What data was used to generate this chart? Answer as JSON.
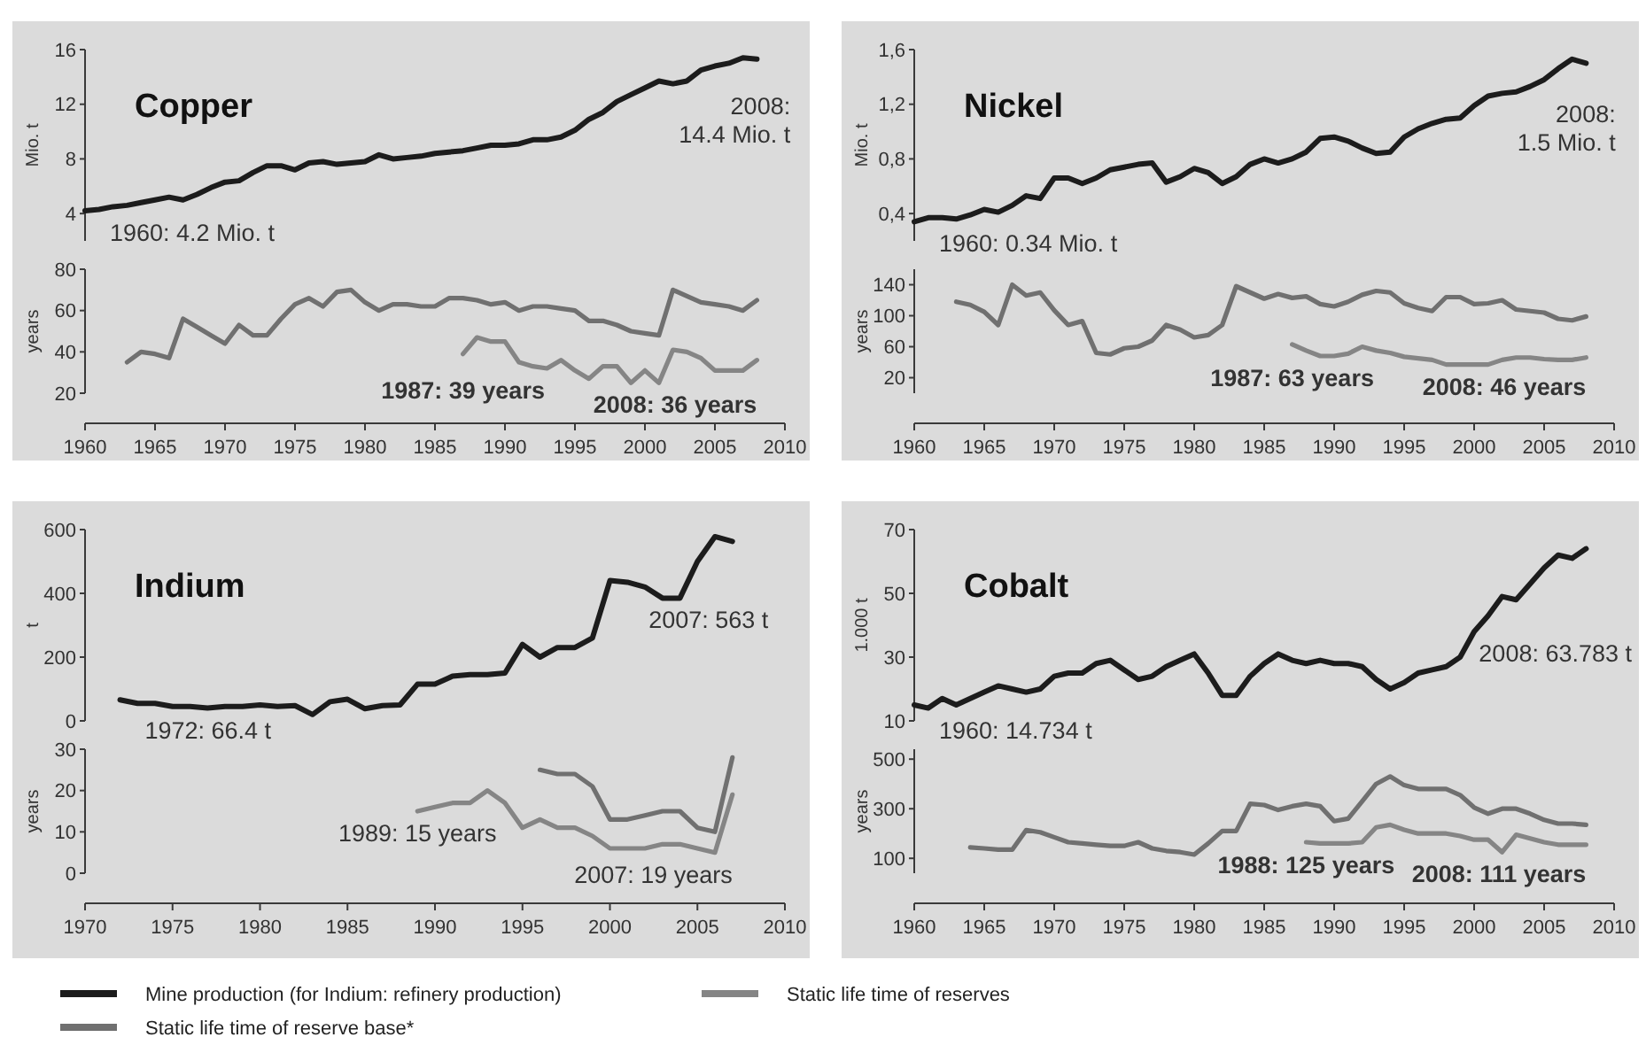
{
  "chart_data": [
    {
      "type": "line",
      "title": "Copper",
      "ylabel": "Mio. t",
      "xlim": [
        1960,
        2010
      ],
      "ylim": [
        2,
        16
      ],
      "yticks": [
        4,
        8,
        12,
        16
      ],
      "tick_labels": "y",
      "legend": "bottom",
      "annotations": [
        {
          "text": "1960: 4.2 Mio. t",
          "x": 1960,
          "y": 4.2
        },
        "2008:\n14.4 Mio. t"
      ],
      "series": [
        {
          "name": "Mine production (for Indium: refinery production)",
          "color": "#1c1c1c",
          "x": [
            1960,
            1961,
            1962,
            1963,
            1964,
            1965,
            1966,
            1967,
            1968,
            1969,
            1970,
            1971,
            1972,
            1973,
            1974,
            1975,
            1976,
            1977,
            1978,
            1979,
            1980,
            1981,
            1982,
            1983,
            1984,
            1985,
            1986,
            1987,
            1988,
            1989,
            1990,
            1991,
            1992,
            1993,
            1994,
            1995,
            1996,
            1997,
            1998,
            1999,
            2000,
            2001,
            2002,
            2003,
            2004,
            2005,
            2006,
            2007,
            2008
          ],
          "values": [
            4.2,
            4.3,
            4.5,
            4.6,
            4.8,
            5.0,
            5.2,
            5.0,
            5.4,
            5.9,
            6.3,
            6.4,
            7.0,
            7.5,
            7.5,
            7.2,
            7.7,
            7.8,
            7.6,
            7.7,
            7.8,
            8.3,
            8.0,
            8.1,
            8.2,
            8.4,
            8.5,
            8.6,
            8.8,
            9.0,
            9.0,
            9.1,
            9.4,
            9.4,
            9.6,
            10.1,
            10.9,
            11.4,
            12.2,
            12.7,
            13.2,
            13.7,
            13.5,
            13.7,
            14.5,
            14.8,
            15.0,
            15.4,
            15.3
          ]
        }
      ]
    },
    {
      "type": "line",
      "ylabel": "years",
      "xlim": [
        1960,
        2010
      ],
      "xticks": [
        1960,
        1965,
        1970,
        1975,
        1980,
        1985,
        1990,
        1995,
        2000,
        2005,
        2010
      ],
      "ylim": [
        20,
        80
      ],
      "yticks": [
        20,
        40,
        60,
        80
      ],
      "legend": "bottom",
      "annotations": [
        {
          "text": "1987: 39 years",
          "x": 1987,
          "y": 39
        },
        {
          "text": "2008: 36 years",
          "x": 2008,
          "y": 36
        }
      ],
      "series": [
        {
          "name": "Static life time of reserve base*",
          "color": "#707070",
          "x": [
            1963,
            1964,
            1965,
            1966,
            1967,
            1968,
            1969,
            1970,
            1971,
            1972,
            1973,
            1974,
            1975,
            1976,
            1977,
            1978,
            1979,
            1980,
            1981,
            1982,
            1983,
            1984,
            1985,
            1986,
            1987,
            1988,
            1989,
            1990,
            1991,
            1992,
            1993,
            1994,
            1995,
            1996,
            1997,
            1998,
            1999,
            2000,
            2001,
            2002,
            2003,
            2004,
            2005,
            2006,
            2007,
            2008
          ],
          "values": [
            35,
            40,
            39,
            37,
            56,
            52,
            48,
            44,
            53,
            48,
            48,
            56,
            63,
            66,
            62,
            69,
            70,
            64,
            60,
            63,
            63,
            62,
            62,
            66,
            66,
            65,
            63,
            64,
            60,
            62,
            62,
            61,
            60,
            55,
            55,
            53,
            50,
            49,
            48,
            70,
            67,
            64,
            63,
            62,
            60,
            65
          ]
        },
        {
          "name": "Static life time of reserves",
          "color": "#858585",
          "x": [
            1987,
            1988,
            1989,
            1990,
            1991,
            1992,
            1993,
            1994,
            1995,
            1996,
            1997,
            1998,
            1999,
            2000,
            2001,
            2002,
            2003,
            2004,
            2005,
            2006,
            2007,
            2008
          ],
          "values": [
            39,
            47,
            45,
            45,
            35,
            33,
            32,
            36,
            31,
            27,
            33,
            33,
            25,
            31,
            25,
            41,
            40,
            37,
            31,
            31,
            31,
            36
          ]
        }
      ]
    },
    {
      "type": "line",
      "title": "Nickel",
      "ylabel": "Mio. t",
      "xlim": [
        1960,
        2010
      ],
      "ylim": [
        0.2,
        1.6
      ],
      "yticks": [
        {
          "value": 0.4,
          "label": "0,4"
        },
        {
          "value": 0.8,
          "label": "0,8"
        },
        {
          "value": 1.2,
          "label": "1,2"
        },
        {
          "value": 1.6,
          "label": "1,6"
        }
      ],
      "tick_labels": "y",
      "legend": "bottom",
      "annotations": [
        {
          "text": "1960: 0.34 Mio. t",
          "x": 1960,
          "y": 0.34
        },
        {
          "text": "2008:\n1.5 Mio. t",
          "x": 2008,
          "y": 1.5
        }
      ],
      "series": [
        {
          "name": "Mine production (for Indium: refinery production)",
          "color": "#1c1c1c",
          "x": [
            1960,
            1961,
            1962,
            1963,
            1964,
            1965,
            1966,
            1967,
            1968,
            1969,
            1970,
            1971,
            1972,
            1973,
            1974,
            1975,
            1976,
            1977,
            1978,
            1979,
            1980,
            1981,
            1982,
            1983,
            1984,
            1985,
            1986,
            1987,
            1988,
            1989,
            1990,
            1991,
            1992,
            1993,
            1994,
            1995,
            1996,
            1997,
            1998,
            1999,
            2000,
            2001,
            2002,
            2003,
            2004,
            2005,
            2006,
            2007,
            2008
          ],
          "values": [
            0.34,
            0.37,
            0.37,
            0.36,
            0.39,
            0.43,
            0.41,
            0.46,
            0.53,
            0.51,
            0.66,
            0.66,
            0.62,
            0.66,
            0.72,
            0.74,
            0.76,
            0.77,
            0.63,
            0.67,
            0.73,
            0.7,
            0.62,
            0.67,
            0.76,
            0.8,
            0.77,
            0.8,
            0.85,
            0.95,
            0.96,
            0.93,
            0.88,
            0.84,
            0.85,
            0.96,
            1.02,
            1.06,
            1.09,
            1.1,
            1.19,
            1.26,
            1.28,
            1.29,
            1.33,
            1.38,
            1.46,
            1.53,
            1.5
          ]
        }
      ]
    },
    {
      "type": "line",
      "ylabel": "years",
      "xlim": [
        1960,
        2010
      ],
      "xticks": [
        1960,
        1965,
        1970,
        1975,
        1980,
        1985,
        1990,
        1995,
        2000,
        2005,
        2010
      ],
      "ylim": [
        0,
        160
      ],
      "yticks": [
        20,
        60,
        100,
        140
      ],
      "legend": "bottom",
      "annotations": [
        {
          "text": "1987: 63 years",
          "x": 1987,
          "y": 63
        },
        {
          "text": "2008: 46 years",
          "x": 2008,
          "y": 46
        }
      ],
      "series": [
        {
          "name": "Static life time of reserve base*",
          "color": "#707070",
          "x": [
            1963,
            1964,
            1965,
            1966,
            1967,
            1968,
            1969,
            1970,
            1971,
            1972,
            1973,
            1974,
            1975,
            1976,
            1977,
            1978,
            1979,
            1980,
            1981,
            1982,
            1983,
            1984,
            1985,
            1986,
            1987,
            1988,
            1989,
            1990,
            1991,
            1992,
            1993,
            1994,
            1995,
            1996,
            1997,
            1998,
            1999,
            2000,
            2001,
            2002,
            2003,
            2004,
            2005,
            2006,
            2007,
            2008
          ],
          "values": [
            118,
            114,
            105,
            88,
            140,
            126,
            130,
            107,
            88,
            93,
            52,
            50,
            58,
            60,
            68,
            88,
            82,
            72,
            75,
            88,
            138,
            130,
            122,
            128,
            123,
            125,
            115,
            112,
            118,
            127,
            132,
            130,
            116,
            110,
            106,
            124,
            124,
            115,
            116,
            120,
            108,
            106,
            104,
            96,
            94,
            99
          ]
        },
        {
          "name": "Static life time of reserves",
          "color": "#858585",
          "x": [
            1987,
            1988,
            1989,
            1990,
            1991,
            1992,
            1993,
            1994,
            1995,
            1996,
            1997,
            1998,
            1999,
            2000,
            2001,
            2002,
            2003,
            2004,
            2005,
            2006,
            2007,
            2008
          ],
          "values": [
            63,
            55,
            48,
            48,
            51,
            60,
            55,
            52,
            47,
            45,
            43,
            37,
            37,
            37,
            37,
            43,
            46,
            46,
            44,
            43,
            43,
            46
          ]
        }
      ]
    },
    {
      "type": "line",
      "title": "Indium",
      "ylabel": "t",
      "xlim": [
        1970,
        2010
      ],
      "ylim": [
        0,
        600
      ],
      "yticks": [
        0,
        200,
        400,
        600
      ],
      "tick_labels": "y",
      "legend": "bottom",
      "annotations": [
        {
          "text": "1972: 66.4 t",
          "x": 1972,
          "y": 66.4
        },
        {
          "text": "2007: 563 t",
          "x": 2007,
          "y": 563
        }
      ],
      "series": [
        {
          "name": "Mine production (for Indium: refinery production)",
          "color": "#1c1c1c",
          "x": [
            1972,
            1973,
            1974,
            1975,
            1976,
            1977,
            1978,
            1979,
            1980,
            1981,
            1982,
            1983,
            1984,
            1985,
            1986,
            1987,
            1988,
            1989,
            1990,
            1991,
            1992,
            1993,
            1994,
            1995,
            1996,
            1997,
            1998,
            1999,
            2000,
            2001,
            2002,
            2003,
            2004,
            2005,
            2006,
            2007
          ],
          "values": [
            66,
            55,
            55,
            45,
            45,
            40,
            45,
            45,
            50,
            45,
            48,
            20,
            60,
            68,
            38,
            48,
            50,
            115,
            115,
            140,
            145,
            145,
            150,
            240,
            200,
            230,
            230,
            260,
            440,
            435,
            420,
            385,
            385,
            500,
            578,
            563
          ]
        }
      ]
    },
    {
      "type": "line",
      "ylabel": "years",
      "xlim": [
        1970,
        2010
      ],
      "xticks": [
        1970,
        1975,
        1980,
        1985,
        1990,
        1995,
        2000,
        2005,
        2010
      ],
      "ylim": [
        0,
        30
      ],
      "yticks": [
        0,
        10,
        20,
        30
      ],
      "legend": "bottom",
      "annotations": [
        {
          "text": "1989: 15 years",
          "x": 1989,
          "y": 15
        },
        {
          "text": "2007: 19 years",
          "x": 2007,
          "y": 19
        }
      ],
      "series": [
        {
          "name": "Static life time of reserve base*",
          "color": "#707070",
          "x": [
            1996,
            1997,
            1998,
            1999,
            2000,
            2001,
            2002,
            2003,
            2004,
            2005,
            2006,
            2007
          ],
          "values": [
            25,
            24,
            24,
            21,
            13,
            13,
            14,
            15,
            15,
            11,
            10,
            28
          ]
        },
        {
          "name": "Static life time of reserves",
          "color": "#858585",
          "x": [
            1989,
            1990,
            1991,
            1992,
            1993,
            1994,
            1995,
            1996,
            1997,
            1998,
            1999,
            2000,
            2001,
            2002,
            2003,
            2004,
            2005,
            2006,
            2007
          ],
          "values": [
            15,
            16,
            17,
            17,
            20,
            17,
            11,
            13,
            11,
            11,
            9,
            6,
            6,
            6,
            7,
            7,
            6,
            5,
            19
          ]
        }
      ]
    },
    {
      "type": "line",
      "title": "Cobalt",
      "ylabel": "1.000 t",
      "xlim": [
        1960,
        2010
      ],
      "ylim": [
        10,
        70
      ],
      "yticks": [
        10,
        30,
        50,
        70
      ],
      "tick_labels": "y",
      "legend": "bottom",
      "annotations": [
        {
          "text": "1960: 14.734 t",
          "x": 1960,
          "y": 15
        },
        "2008: 63.783 t"
      ],
      "series": [
        {
          "name": "Mine production (for Indium: refinery production)",
          "color": "#1c1c1c",
          "x": [
            1960,
            1961,
            1962,
            1963,
            1964,
            1965,
            1966,
            1967,
            1968,
            1969,
            1970,
            1971,
            1972,
            1973,
            1974,
            1975,
            1976,
            1977,
            1978,
            1979,
            1980,
            1981,
            1982,
            1983,
            1984,
            1985,
            1986,
            1987,
            1988,
            1989,
            1990,
            1991,
            1992,
            1993,
            1994,
            1995,
            1996,
            1997,
            1998,
            1999,
            2000,
            2001,
            2002,
            2003,
            2004,
            2005,
            2006,
            2007,
            2008
          ],
          "values": [
            15,
            14,
            17,
            15,
            17,
            19,
            21,
            20,
            19,
            20,
            24,
            25,
            25,
            28,
            29,
            26,
            23,
            24,
            27,
            29,
            31,
            25,
            18,
            18,
            24,
            28,
            31,
            29,
            28,
            29,
            28,
            28,
            27,
            23,
            20,
            22,
            25,
            26,
            27,
            30,
            38,
            43,
            49,
            48,
            53,
            58,
            62,
            61,
            64
          ]
        }
      ]
    },
    {
      "type": "line",
      "ylabel": "years",
      "xlim": [
        1960,
        2010
      ],
      "xticks": [
        1960,
        1965,
        1970,
        1975,
        1980,
        1985,
        1990,
        1995,
        2000,
        2005,
        2010
      ],
      "ylim": [
        40,
        540
      ],
      "yticks": [
        100,
        300,
        500
      ],
      "legend": "bottom",
      "annotations": [
        "1988: 125 years",
        "2008: 111 years"
      ],
      "series": [
        {
          "name": "Static life time of reserve base*",
          "color": "#707070",
          "x": [
            1964,
            1965,
            1966,
            1967,
            1968,
            1969,
            1970,
            1971,
            1972,
            1973,
            1974,
            1975,
            1976,
            1977,
            1978,
            1979,
            1980,
            1981,
            1982,
            1983,
            1984,
            1985,
            1986,
            1987,
            1988,
            1989,
            1990,
            1991,
            1992,
            1993,
            1994,
            1995,
            1996,
            1997,
            1998,
            1999,
            2000,
            2001,
            2002,
            2003,
            2004,
            2005,
            2006,
            2007,
            2008
          ],
          "values": [
            144,
            140,
            135,
            135,
            214,
            205,
            185,
            165,
            160,
            155,
            150,
            150,
            165,
            140,
            130,
            125,
            115,
            160,
            210,
            210,
            320,
            315,
            295,
            310,
            320,
            310,
            250,
            260,
            330,
            400,
            430,
            395,
            380,
            380,
            380,
            355,
            305,
            280,
            300,
            300,
            280,
            255,
            240,
            240,
            235
          ]
        },
        {
          "name": "Static life time of reserves",
          "color": "#858585",
          "x": [
            1988,
            1989,
            1990,
            1991,
            1992,
            1993,
            1994,
            1995,
            1996,
            1997,
            1998,
            1999,
            2000,
            2001,
            2002,
            2003,
            2004,
            2005,
            2006,
            2007,
            2008
          ],
          "values": [
            165,
            160,
            160,
            160,
            165,
            225,
            235,
            215,
            200,
            200,
            200,
            190,
            175,
            175,
            125,
            195,
            180,
            165,
            155,
            155,
            155
          ]
        }
      ]
    }
  ]
}
